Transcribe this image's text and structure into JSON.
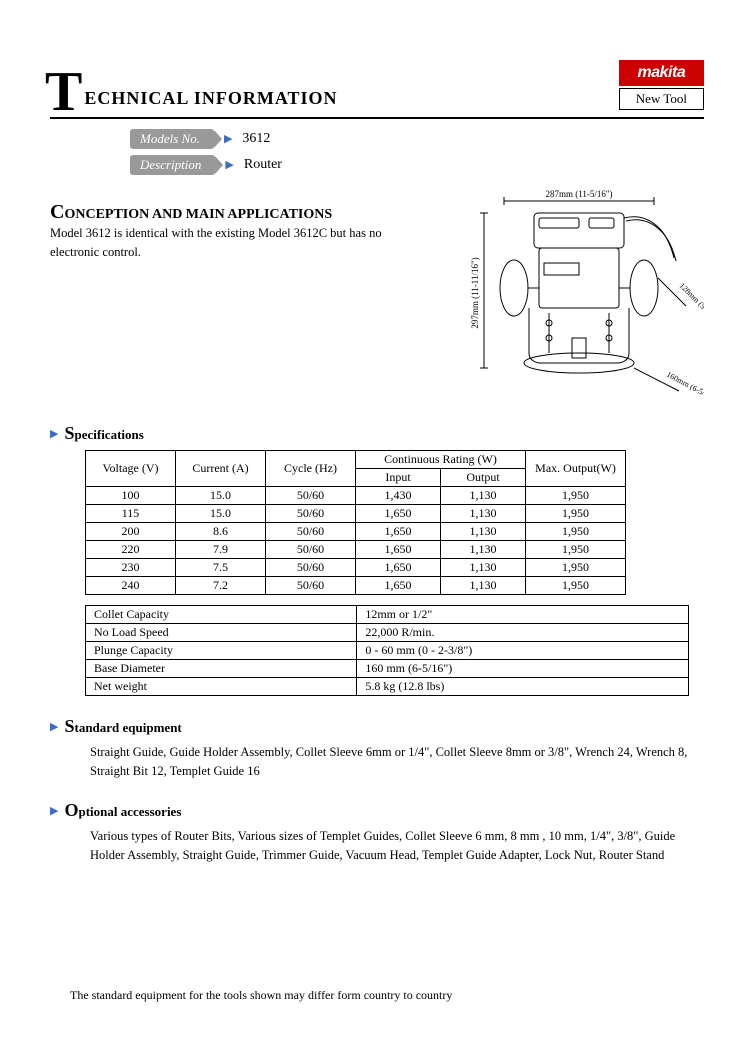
{
  "header": {
    "big_letter": "T",
    "title": "ECHNICAL INFORMATION",
    "logo_text": "makita",
    "logo_bg": "#cc0000",
    "logo_color": "#ffffff",
    "new_tool": "New Tool"
  },
  "tags": {
    "models_label": "Models No.",
    "models_value": "3612",
    "description_label": "Description",
    "description_value": "Router",
    "arrow_color": "#3a6ec5"
  },
  "conception": {
    "cap": "C",
    "title": "ONCEPTION AND MAIN APPLICATIONS",
    "text": "Model 3612 is identical with the existing Model 3612C but has no electronic control."
  },
  "diagram": {
    "width_label": "287mm (11-5/16\")",
    "height_label": "297mm (11-11/16\")",
    "handle_label": "128mm (5-1/16\")",
    "base_label": "160mm (6-5/16\")"
  },
  "spec_section": {
    "cap": "S",
    "title": "pecifications"
  },
  "spec_table": {
    "headers": {
      "voltage": "Voltage (V)",
      "current": "Current (A)",
      "cycle": "Cycle (Hz)",
      "cont_rating": "Continuous Rating (W)",
      "input": "Input",
      "output": "Output",
      "max_output": "Max. Output(W)"
    },
    "rows": [
      {
        "v": "100",
        "c": "15.0",
        "cy": "50/60",
        "in": "1,430",
        "out": "1,130",
        "mx": "1,950"
      },
      {
        "v": "115",
        "c": "15.0",
        "cy": "50/60",
        "in": "1,650",
        "out": "1,130",
        "mx": "1,950"
      },
      {
        "v": "200",
        "c": "8.6",
        "cy": "50/60",
        "in": "1,650",
        "out": "1,130",
        "mx": "1,950"
      },
      {
        "v": "220",
        "c": "7.9",
        "cy": "50/60",
        "in": "1,650",
        "out": "1,130",
        "mx": "1,950"
      },
      {
        "v": "230",
        "c": "7.5",
        "cy": "50/60",
        "in": "1,650",
        "out": "1,130",
        "mx": "1,950"
      },
      {
        "v": "240",
        "c": "7.2",
        "cy": "50/60",
        "in": "1,650",
        "out": "1,130",
        "mx": "1,950"
      }
    ]
  },
  "attr_table": {
    "rows": [
      {
        "k": "Collet Capacity",
        "v": "12mm  or 1/2\""
      },
      {
        "k": "No Load Speed",
        "v": "22,000 R/min."
      },
      {
        "k": "Plunge Capacity",
        "v": "0 - 60 mm (0 - 2-3/8\")"
      },
      {
        "k": "Base Diameter",
        "v": "160 mm (6-5/16\")"
      },
      {
        "k": "Net weight",
        "v": "5.8 kg (12.8 lbs)"
      }
    ]
  },
  "standard": {
    "cap": "S",
    "title": "tandard equipment",
    "text": "Straight Guide, Guide Holder Assembly, Collet Sleeve 6mm  or 1/4\", Collet Sleeve 8mm  or 3/8\", Wrench 24, Wrench 8, Straight Bit 12, Templet Guide 16"
  },
  "optional": {
    "cap": "O",
    "title": "ptional accessories",
    "text": "Various types of Router Bits, Various sizes of Templet Guides, Collet Sleeve 6 mm,  8 mm , 10 mm, 1/4\", 3/8\", Guide Holder Assembly, Straight Guide, Trimmer Guide, Vacuum Head, Templet Guide Adapter, Lock Nut, Router Stand"
  },
  "footer": "The standard equipment for the tools shown may differ form country to country"
}
